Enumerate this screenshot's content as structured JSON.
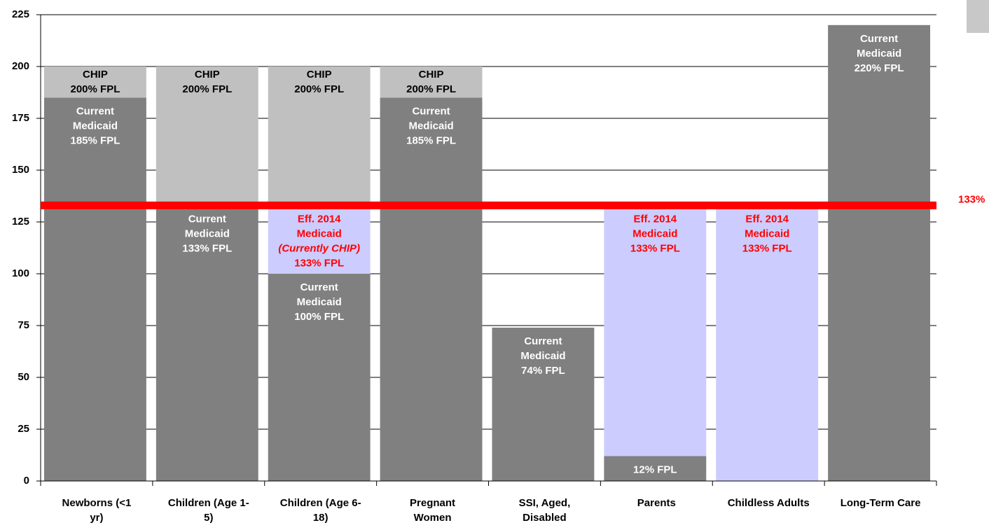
{
  "chart_data": {
    "type": "stacked_bar",
    "categories": [
      [
        "Newborns (<1",
        "yr)"
      ],
      [
        "Children (Age 1-",
        "5)"
      ],
      [
        "Children (Age 6-",
        "18)"
      ],
      [
        "Pregnant",
        "Women"
      ],
      [
        "SSI, Aged,",
        "Disabled"
      ],
      [
        "Parents"
      ],
      [
        "Childless Adults"
      ],
      [
        "Long-Term Care"
      ]
    ],
    "series": [
      {
        "color": "#808080",
        "text_color": "#ffffff",
        "values": [
          185,
          133,
          100,
          185,
          74,
          12,
          0,
          220
        ],
        "segment_labels": [
          [
            "Current",
            "Medicaid",
            "185% FPL"
          ],
          [
            "Current",
            "Medicaid",
            "133% FPL"
          ],
          [
            "Current",
            "Medicaid",
            "100% FPL"
          ],
          [
            "Current",
            "Medicaid",
            "185% FPL"
          ],
          [
            "Current",
            "Medicaid",
            "74% FPL"
          ],
          [
            "12% FPL"
          ],
          null,
          [
            "Current",
            "Medicaid",
            "220% FPL"
          ]
        ]
      },
      {
        "color": "#ccccff",
        "text_color": "#ff0000",
        "values": [
          0,
          0,
          33,
          0,
          0,
          121,
          133,
          0
        ],
        "segment_labels": [
          null,
          null,
          [
            "Eff. 2014",
            "Medicaid",
            "(Currently CHIP)",
            "133% FPL"
          ],
          null,
          null,
          [
            "Eff. 2014",
            "Medicaid",
            "133% FPL"
          ],
          [
            "Eff. 2014",
            "Medicaid",
            "133% FPL"
          ],
          null
        ]
      },
      {
        "color": "#c0c0c0",
        "text_color": "#000000",
        "values": [
          15,
          67,
          67,
          15,
          0,
          0,
          0,
          0
        ],
        "segment_labels": [
          [
            "CHIP",
            "200% FPL"
          ],
          [
            "CHIP",
            "200% FPL"
          ],
          [
            "CHIP",
            "200% FPL"
          ],
          [
            "CHIP",
            "200% FPL"
          ],
          null,
          null,
          null,
          null
        ]
      }
    ],
    "ylim": [
      0,
      225
    ],
    "yticks": [
      0,
      25,
      50,
      75,
      100,
      125,
      150,
      175,
      200,
      225
    ],
    "grid": true,
    "reference_line": {
      "value": 133,
      "label": "133%",
      "color": "#ff0000"
    }
  }
}
